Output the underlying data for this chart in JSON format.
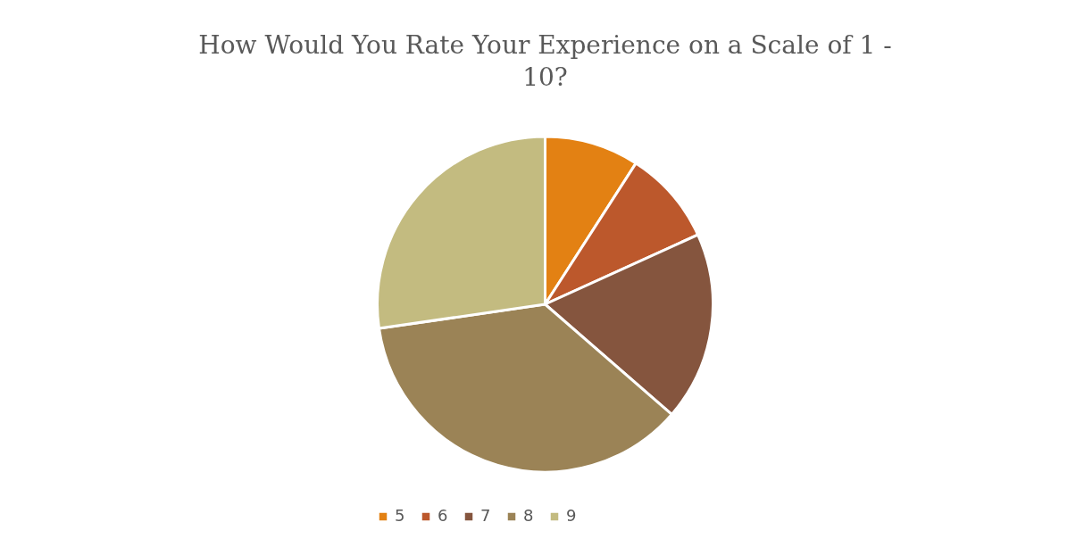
{
  "chart_data": {
    "type": "pie",
    "title": "How Would You Rate Your Experience on a Scale of 1 - 10?",
    "categories": [
      "5",
      "6",
      "7",
      "8",
      "9"
    ],
    "values": [
      9.1,
      9.1,
      18.2,
      36.3,
      27.3
    ],
    "colors": [
      "#e38113",
      "#bc582c",
      "#85553e",
      "#9b8356",
      "#c3bb80"
    ],
    "legend": "bottom"
  }
}
